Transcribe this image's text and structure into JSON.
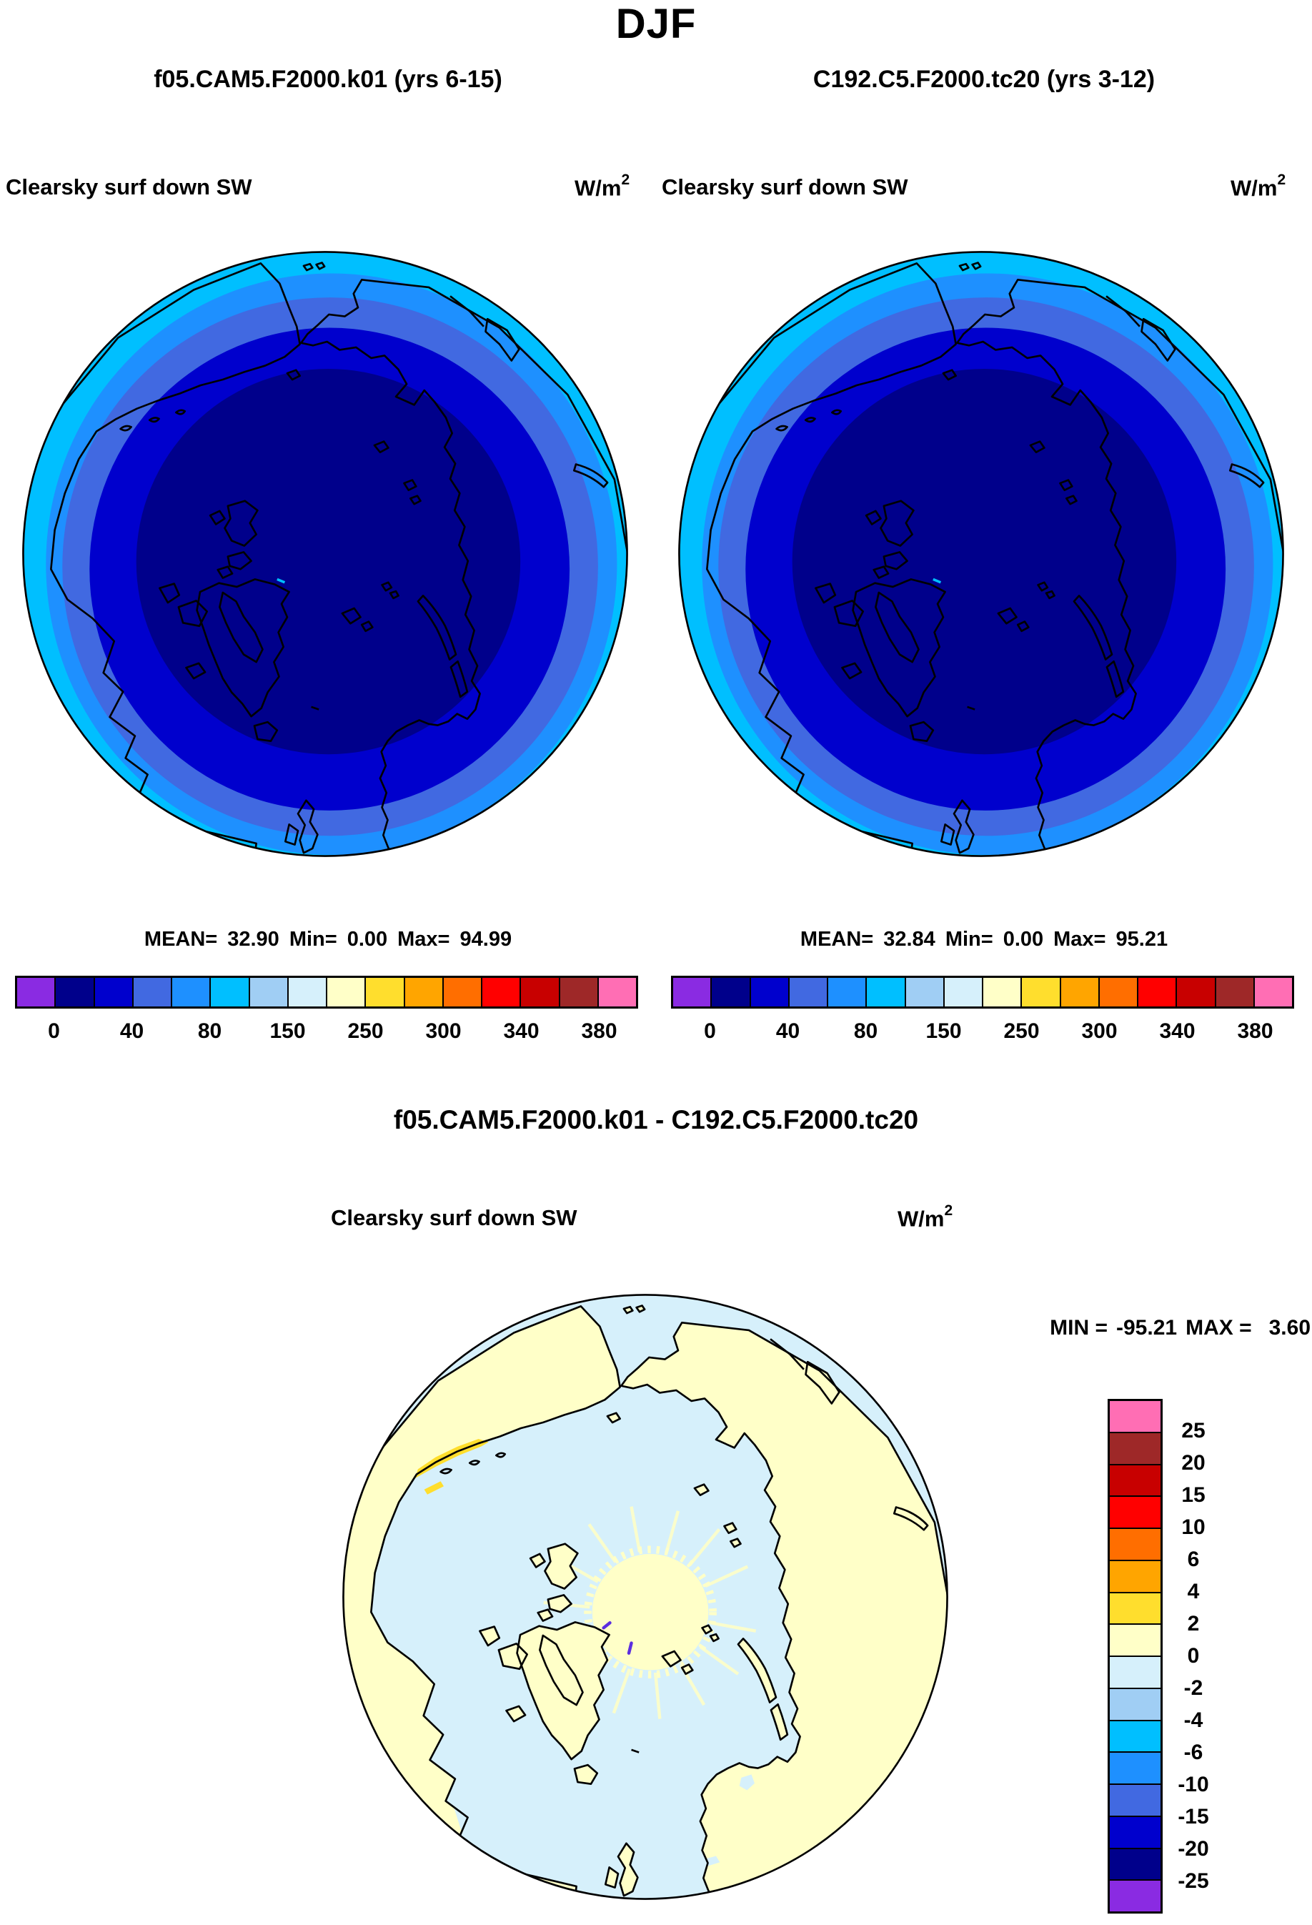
{
  "title": "DJF",
  "panel_left": {
    "run_label": "f05.CAM5.F2000.k01 (yrs 6-15)",
    "field": "Clearsky surf down SW",
    "units_base": "W/m",
    "units_exp": "2",
    "mean_label": "MEAN=",
    "mean": "32.90",
    "min_label": "Min=",
    "min": "0.00",
    "max_label": "Max=",
    "max": "94.99"
  },
  "panel_right": {
    "run_label": "C192.C5.F2000.tc20 (yrs 3-12)",
    "field": "Clearsky surf down SW",
    "units_base": "W/m",
    "units_exp": "2",
    "mean_label": "MEAN=",
    "mean": "32.84",
    "min_label": "Min=",
    "min": "0.00",
    "max_label": "Max=",
    "max": "95.21"
  },
  "panel_diff": {
    "title": "f05.CAM5.F2000.k01 - C192.C5.F2000.tc20",
    "field": "Clearsky surf down SW",
    "units_base": "W/m",
    "units_exp": "2",
    "min_label": "MIN =",
    "min": "-95.21",
    "max_label": "MAX =",
    "max": "3.60"
  },
  "palette": {
    "purple": "#8A2BE2",
    "navy": "#00008B",
    "blue": "#0000CD",
    "royal": "#4169E1",
    "dodger": "#1E90FF",
    "deepsky": "#00BFFF",
    "lightsky": "#A0CEF4",
    "paleblue": "#D6F0FB",
    "paleyellow": "#FFFFC8",
    "gold": "#FFDE2D",
    "orange": "#FFA500",
    "darkorange": "#FF6E00",
    "red": "#FF0000",
    "darkred": "#C80000",
    "brick": "#9E2828",
    "pink": "#FF6EB4",
    "coast": "#000000",
    "purple_mark": "#5B2EE0"
  },
  "colorbar_top": {
    "colors": [
      "#8A2BE2",
      "#00008B",
      "#0000CD",
      "#4169E1",
      "#1E90FF",
      "#00BFFF",
      "#A0CEF4",
      "#D6F0FB",
      "#FFFFC8",
      "#FFDE2D",
      "#FFA500",
      "#FF6E00",
      "#FF0000",
      "#C80000",
      "#9E2828",
      "#FF6EB4"
    ],
    "tick_labels": [
      "0",
      "40",
      "80",
      "150",
      "250",
      "300",
      "340",
      "380"
    ]
  },
  "colorbar_diff": {
    "colors": [
      "#FF6EB4",
      "#9E2828",
      "#C80000",
      "#FF0000",
      "#FF6E00",
      "#FFA500",
      "#FFDE2D",
      "#FFFFC8",
      "#D6F0FB",
      "#A0CEF4",
      "#00BFFF",
      "#1E90FF",
      "#4169E1",
      "#0000CD",
      "#00008B",
      "#8A2BE2"
    ],
    "tick_labels": [
      "25",
      "20",
      "15",
      "10",
      "6",
      "4",
      "2",
      "0",
      "-2",
      "-4",
      "-6",
      "-10",
      "-15",
      "-20",
      "-25"
    ]
  },
  "chart_data": {
    "type": "heatmap",
    "subtype": "north-polar-stereographic-maps",
    "season_title": "DJF",
    "variable": "Clearsky surf down SW",
    "units": "W/m2",
    "panels": [
      {
        "name": "f05.CAM5.F2000.k01 (yrs 6-15)",
        "mean": 32.9,
        "min": 0.0,
        "max": 94.99
      },
      {
        "name": "C192.C5.F2000.tc20 (yrs 3-12)",
        "mean": 32.84,
        "min": 0.0,
        "max": 95.21
      },
      {
        "name": "f05.CAM5.F2000.k01 - C192.C5.F2000.tc20",
        "min": -95.21,
        "max": 3.6
      }
    ],
    "top_scale_tick_values": [
      0,
      40,
      80,
      150,
      250,
      300,
      340,
      380
    ],
    "diff_scale_tick_values": [
      25,
      20,
      15,
      10,
      6,
      4,
      2,
      0,
      -2,
      -4,
      -6,
      -10,
      -15,
      -20,
      -25
    ],
    "legend_position": "below maps (horizontal) and right of difference map (vertical)",
    "notes_visible": "top two maps: concentric rings increasing outward from ~0 W/m2 (dark navy at pole) to ~95 W/m2 (cyan at edge); difference map mostly 0 to +2 (pale yellow) over land and -2 to 0 (pale blue) over Arctic ocean"
  }
}
